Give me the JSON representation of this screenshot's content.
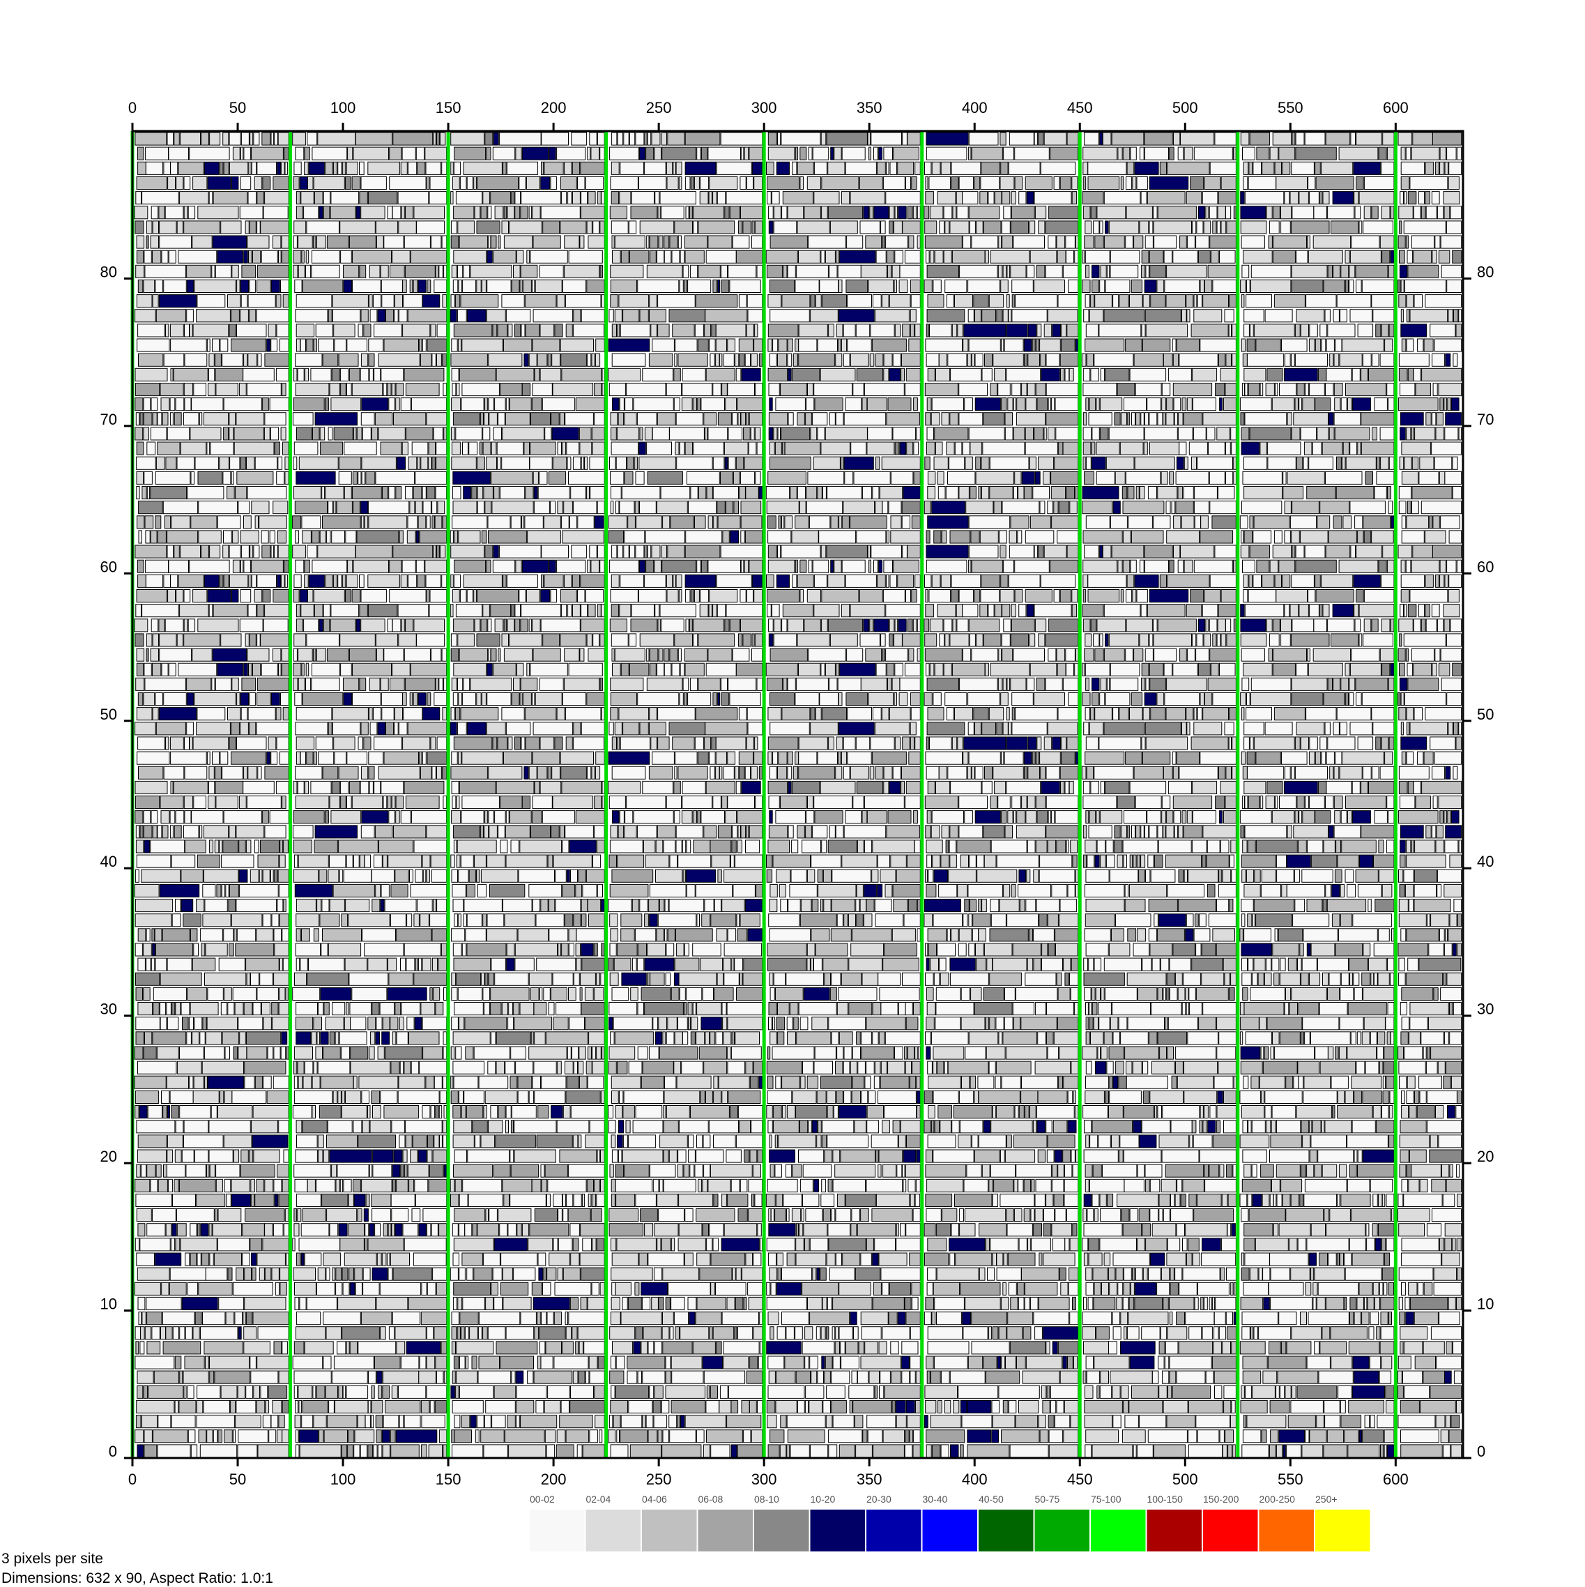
{
  "chart_data": {
    "type": "heatmap",
    "title": "",
    "xlabel": "",
    "ylabel": "",
    "x_range": [
      0,
      632
    ],
    "y_range": [
      0,
      90
    ],
    "x_ticks": [
      0,
      50,
      100,
      150,
      200,
      250,
      300,
      350,
      400,
      450,
      500,
      550,
      600
    ],
    "y_ticks": [
      0,
      10,
      20,
      30,
      40,
      50,
      60,
      70,
      80
    ],
    "green_divider_x": [
      0,
      75,
      150,
      225,
      300,
      375,
      450,
      525,
      600
    ],
    "legend_position": "bottom-right",
    "legend": [
      {
        "label": "00-02",
        "color": "#f8f8f8"
      },
      {
        "label": "02-04",
        "color": "#dcdcdc"
      },
      {
        "label": "04-06",
        "color": "#c0c0c0"
      },
      {
        "label": "06-08",
        "color": "#a4a4a4"
      },
      {
        "label": "08-10",
        "color": "#888888"
      },
      {
        "label": "10-20",
        "color": "#000066"
      },
      {
        "label": "20-30",
        "color": "#0000aa"
      },
      {
        "label": "30-40",
        "color": "#0000ff"
      },
      {
        "label": "40-50",
        "color": "#006600"
      },
      {
        "label": "50-75",
        "color": "#00aa00"
      },
      {
        "label": "75-100",
        "color": "#00ff00"
      },
      {
        "label": "100-150",
        "color": "#aa0000"
      },
      {
        "label": "150-200",
        "color": "#ff0000"
      },
      {
        "label": "200-250",
        "color": "#ff6600"
      },
      {
        "label": "250+",
        "color": "#ffff00"
      }
    ]
  },
  "footer": {
    "pixels_per_site": "3 pixels per site",
    "dimensions": "Dimensions: 632 x 90, Aspect Ratio: 1.0:1"
  }
}
